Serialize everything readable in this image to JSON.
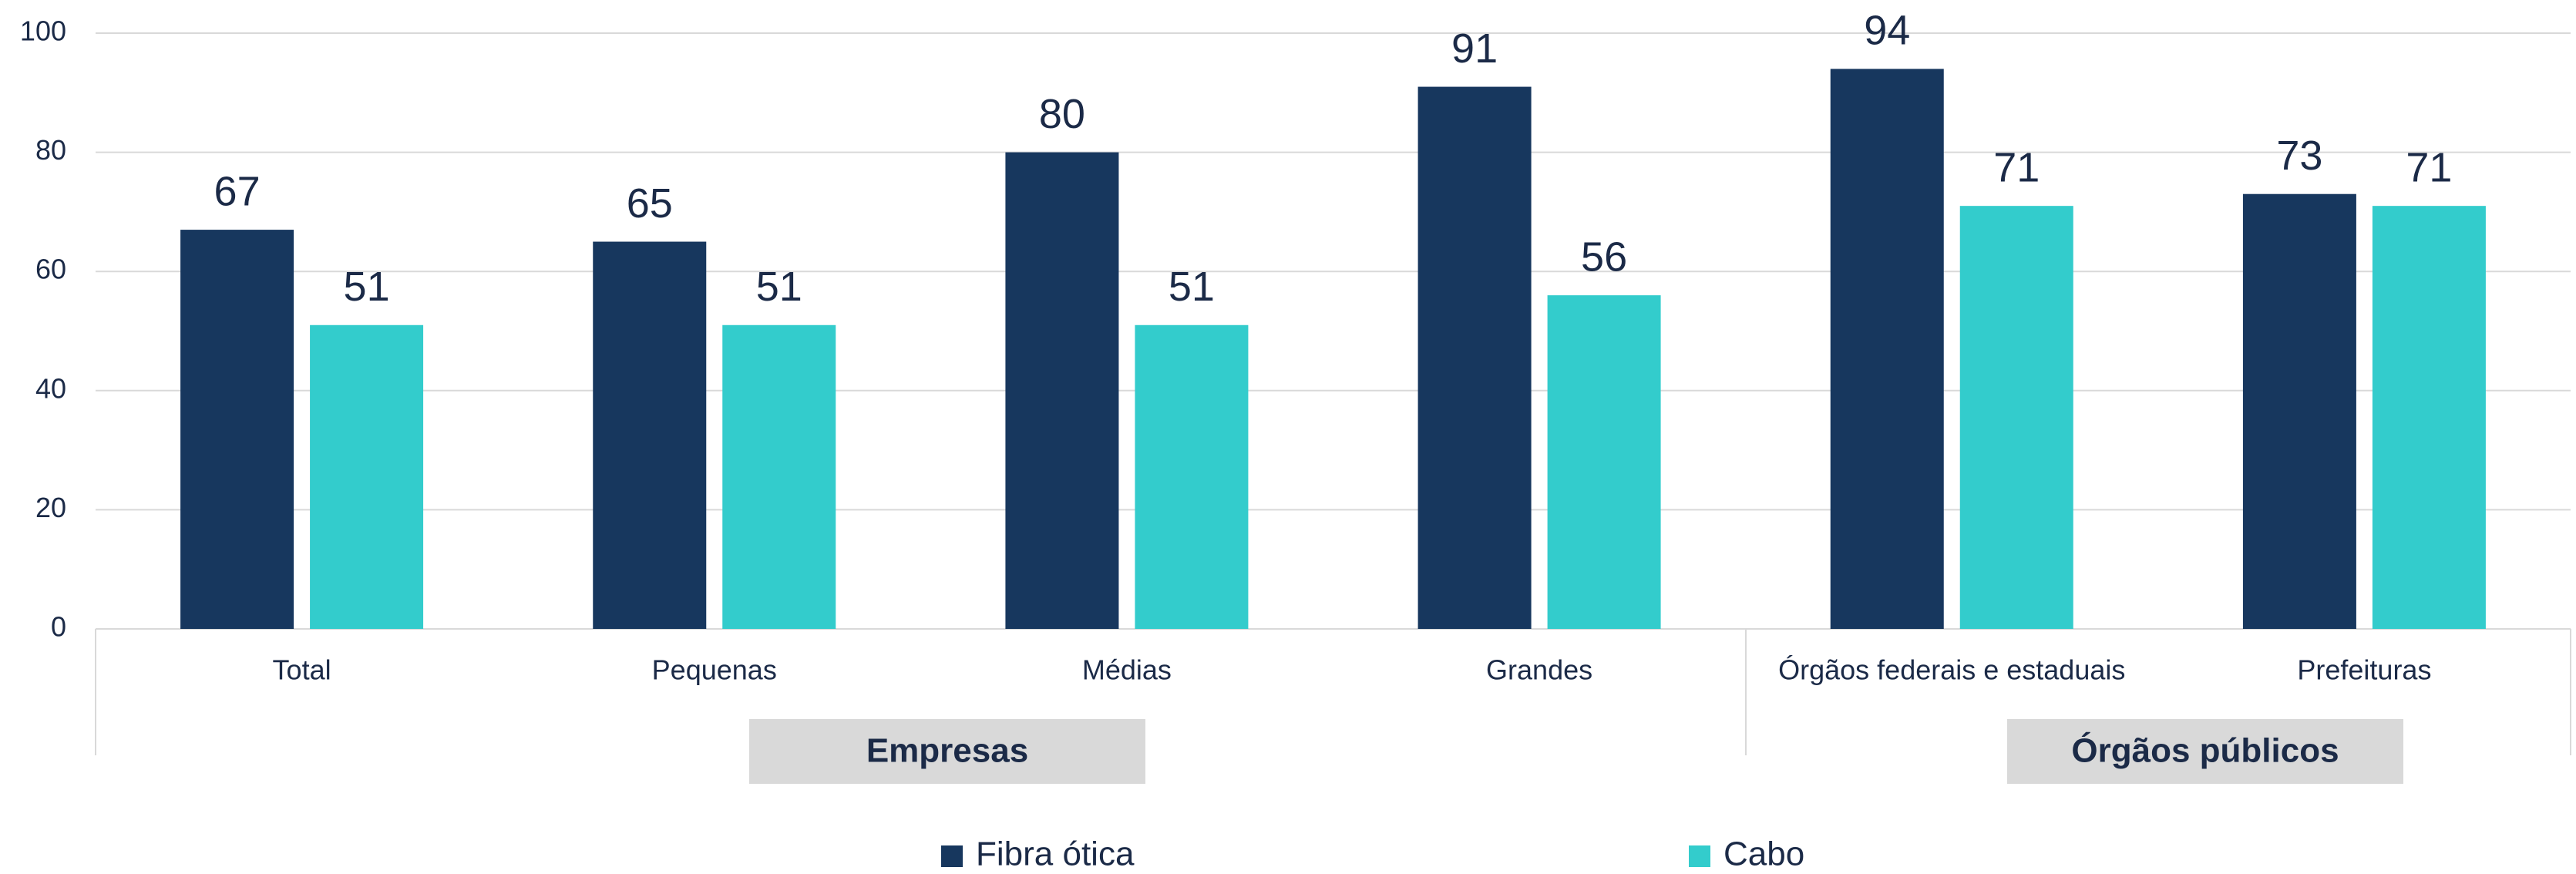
{
  "chart_data": {
    "type": "bar",
    "categories": [
      "Total",
      "Pequenas",
      "Médias",
      "Grandes",
      "Órgãos  federais e estaduais",
      "Prefeituras"
    ],
    "groups": [
      {
        "name": "Empresas"
      },
      {
        "name": "Órgãos públicos"
      }
    ],
    "series": [
      {
        "name": "Fibra ótica",
        "color": "#17375e",
        "values": [
          67,
          65,
          80,
          91,
          94,
          73
        ]
      },
      {
        "name": "Cabo",
        "color": "#33cccc",
        "values": [
          51,
          51,
          51,
          56,
          71,
          71
        ]
      }
    ],
    "ylim": [
      0,
      100
    ],
    "yticks": [
      0,
      20,
      40,
      60,
      80,
      100
    ],
    "grid": true
  }
}
